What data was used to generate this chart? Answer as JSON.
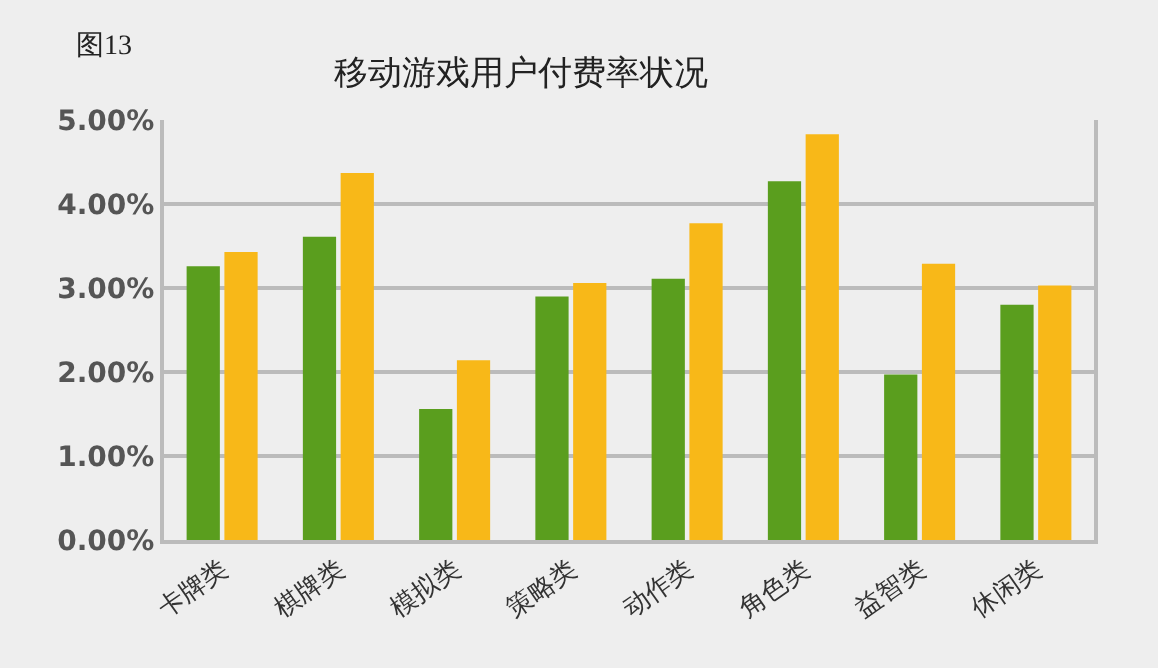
{
  "chart_data": {
    "type": "bar",
    "title": "移动游戏用户付费率状况",
    "annotations": [
      "图13"
    ],
    "categories": [
      "卡牌类",
      "棋牌类",
      "模拟类",
      "策略类",
      "动作类",
      "角色类",
      "益智类",
      "休闲类"
    ],
    "series": [
      {
        "color": "#5a9e1e",
        "values": [
          3.26,
          3.61,
          1.56,
          2.9,
          3.11,
          4.27,
          1.97,
          2.8
        ]
      },
      {
        "color": "#f8b818",
        "values": [
          3.43,
          4.37,
          2.14,
          3.06,
          3.77,
          4.83,
          3.29,
          3.03
        ]
      }
    ],
    "ylim": [
      0,
      5
    ],
    "yticks": [
      {
        "value": 0,
        "label": "0.00%"
      },
      {
        "value": 1,
        "label": "1.00%"
      },
      {
        "value": 2,
        "label": "2.00%"
      },
      {
        "value": 3,
        "label": "3.00%"
      },
      {
        "value": 4,
        "label": "4.00%"
      },
      {
        "value": 5,
        "label": "5.00%"
      }
    ],
    "grid": "y"
  }
}
